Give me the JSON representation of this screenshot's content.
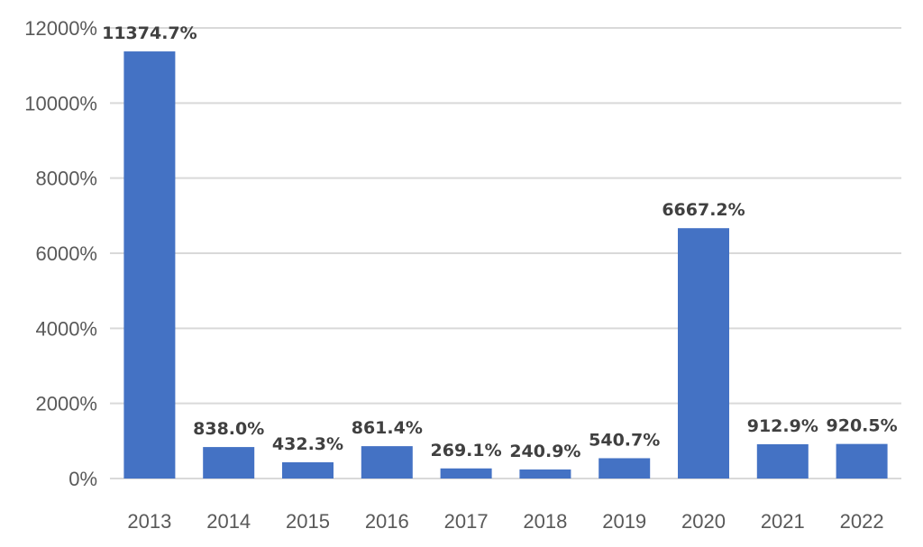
{
  "chart_data": {
    "type": "bar",
    "categories": [
      "2013",
      "2014",
      "2015",
      "2016",
      "2017",
      "2018",
      "2019",
      "2020",
      "2021",
      "2022"
    ],
    "values": [
      11374.7,
      838.0,
      432.3,
      861.4,
      269.1,
      240.9,
      540.7,
      6667.2,
      912.9,
      920.5
    ],
    "data_labels": [
      "11374.7%",
      "838.0%",
      "432.3%",
      "861.4%",
      "269.1%",
      "240.9%",
      "540.7%",
      "6667.2%",
      "912.9%",
      "920.5%"
    ],
    "y_ticks": [
      "0%",
      "2000%",
      "4000%",
      "6000%",
      "8000%",
      "10000%",
      "12000%"
    ],
    "ylim": [
      0,
      12000
    ],
    "grid": true,
    "legend": "none",
    "colors": {
      "bar": "#4472c4",
      "grid": "#d9d9d9",
      "tick_text": "#595959",
      "label_text": "#404040"
    }
  }
}
